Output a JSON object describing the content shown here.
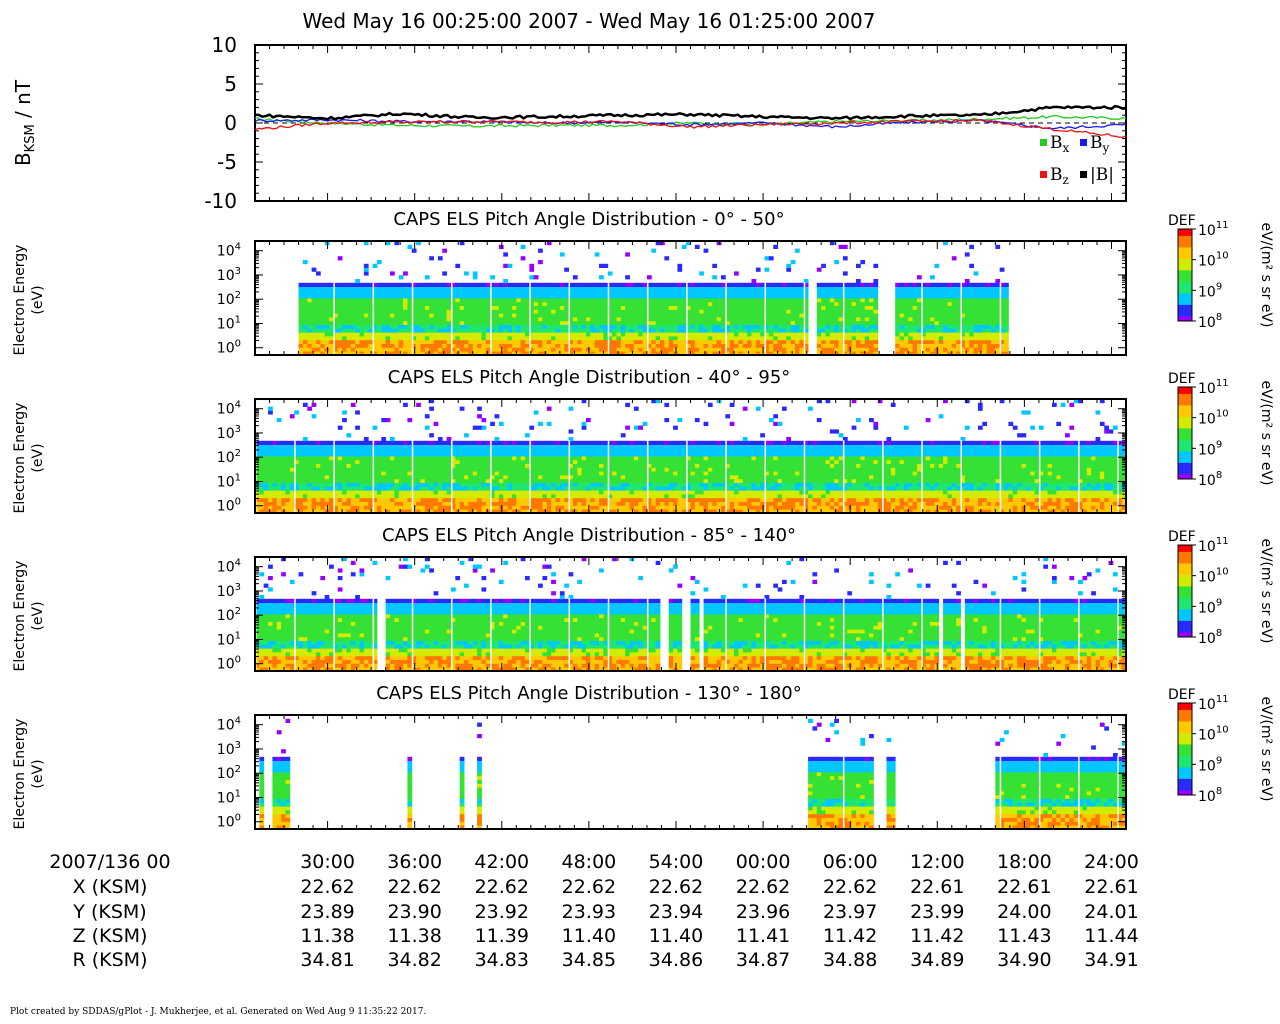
{
  "title": "Wed May 16 00:25:00 2007 - Wed May 16 01:25:00 2007",
  "footer": "Plot created by SDDAS/gPlot - J. Mukherjee, et al.  Generated on Wed Aug 9 11:35:22 2017.",
  "colors": {
    "bx": "#22cc22",
    "by": "#1a1aee",
    "bz": "#ee1111",
    "btot": "#000000",
    "colormap": [
      "#9900ff",
      "#2a2aff",
      "#00c8ff",
      "#1ee66e",
      "#34e134",
      "#d2eb00",
      "#ffc800",
      "#ff7800",
      "#ff0000"
    ]
  },
  "chart_data": [
    {
      "type": "line",
      "ylabel": "B",
      "ylabel_sub": "KSM",
      "ylabel_unit": " / nT",
      "ylim": [
        -10,
        10
      ],
      "yticks": [
        "10",
        "5",
        "0",
        "-5",
        "-10"
      ],
      "yticks_values": [
        10,
        5,
        0,
        -5,
        -10
      ],
      "x_unit": "minutes after 00:25",
      "xlim": [
        0,
        60
      ],
      "x": [
        0,
        5,
        10,
        15,
        20,
        25,
        30,
        35,
        40,
        45,
        50,
        55,
        60
      ],
      "series": [
        {
          "name": "B",
          "sub": "x",
          "color_key": "bx",
          "values": [
            0.5,
            0.0,
            -0.3,
            -0.4,
            -0.3,
            -0.3,
            0.0,
            -0.2,
            0.2,
            0.3,
            0.5,
            0.8,
            0.6
          ]
        },
        {
          "name": "B",
          "sub": "y",
          "color_key": "by",
          "values": [
            0.3,
            0.4,
            0.2,
            0.2,
            0.0,
            0.1,
            -0.2,
            0.0,
            -0.5,
            0.1,
            0.3,
            -0.7,
            -0.2
          ]
        },
        {
          "name": "B",
          "sub": "z",
          "color_key": "bz",
          "values": [
            -0.8,
            0.0,
            0.1,
            0.2,
            0.1,
            0.2,
            -0.5,
            -0.2,
            0.0,
            0.2,
            0.3,
            -0.8,
            -1.8
          ]
        },
        {
          "name": "|B|",
          "sub": "",
          "color_key": "btot",
          "values": [
            1.0,
            0.6,
            1.2,
            0.7,
            0.8,
            1.0,
            1.1,
            0.8,
            0.6,
            0.9,
            1.0,
            2.0,
            2.0
          ]
        }
      ]
    },
    {
      "type": "heatmap",
      "title": "CAPS ELS Pitch Angle Distribution - 0° - 50°",
      "ylabel": "Electron Energy",
      "ylabel_unit": "(eV)",
      "yticks": [
        "10",
        "10",
        "10",
        "10",
        "10"
      ],
      "yticks_exp": [
        "0",
        "1",
        "2",
        "3",
        "4"
      ],
      "colorbar": {
        "label": "DEF",
        "unit": "eV/(m² s sr eV)",
        "range_log10": [
          8,
          11
        ]
      },
      "data_minutes": [
        [
          3,
          52
        ]
      ],
      "gaps_minutes": [
        [
          38,
          38.6
        ],
        [
          43,
          44
        ],
        [
          53.5,
          54
        ],
        [
          55.5,
          56
        ]
      ],
      "profile": "typical"
    },
    {
      "type": "heatmap",
      "title": "CAPS ELS Pitch Angle Distribution - 40° - 95°",
      "ylabel": "Electron Energy",
      "ylabel_unit": "(eV)",
      "yticks": [
        "10",
        "10",
        "10",
        "10",
        "10"
      ],
      "yticks_exp": [
        "0",
        "1",
        "2",
        "3",
        "4"
      ],
      "colorbar": {
        "label": "DEF",
        "unit": "eV/(m² s sr eV)",
        "range_log10": [
          8,
          11
        ]
      },
      "data_minutes": [
        [
          0,
          60
        ]
      ],
      "gaps_minutes": [],
      "profile": "typical"
    },
    {
      "type": "heatmap",
      "title": "CAPS ELS Pitch Angle Distribution - 85° - 140°",
      "ylabel": "Electron Energy",
      "ylabel_unit": "(eV)",
      "yticks": [
        "10",
        "10",
        "10",
        "10",
        "10"
      ],
      "yticks_exp": [
        "0",
        "1",
        "2",
        "3",
        "4"
      ],
      "colorbar": {
        "label": "DEF",
        "unit": "eV/(m² s sr eV)",
        "range_log10": [
          8,
          11
        ]
      },
      "data_minutes": [
        [
          0,
          60
        ]
      ],
      "gaps_minutes": [
        [
          8.5,
          9
        ],
        [
          28,
          28.5
        ],
        [
          29.5,
          30
        ],
        [
          30.5,
          31
        ],
        [
          47,
          47.5
        ],
        [
          48.5,
          49
        ]
      ],
      "profile": "typical"
    },
    {
      "type": "heatmap",
      "title": "CAPS ELS Pitch Angle Distribution - 130° - 180°",
      "ylabel": "Electron Energy",
      "ylabel_unit": "(eV)",
      "yticks": [
        "10",
        "10",
        "10",
        "10",
        "10"
      ],
      "yticks_exp": [
        "0",
        "1",
        "2",
        "3",
        "4"
      ],
      "colorbar": {
        "label": "DEF",
        "unit": "eV/(m² s sr eV)",
        "range_log10": [
          8,
          11
        ]
      },
      "data_minutes": [
        [
          0.3,
          0.6
        ],
        [
          1.3,
          2.5
        ],
        [
          10.5,
          10.7
        ],
        [
          14.2,
          14.4
        ],
        [
          15.4,
          15.6
        ],
        [
          38,
          42.5
        ],
        [
          43.5,
          44
        ],
        [
          51,
          60
        ]
      ],
      "gaps_minutes": [],
      "profile": "sparse"
    }
  ],
  "ephemeris": {
    "row_labels": [
      "2007/136 00",
      "X (KSM)",
      "Y (KSM)",
      "Z (KSM)",
      "R (KSM)"
    ],
    "time_ticks": [
      "30:00",
      "36:00",
      "42:00",
      "48:00",
      "54:00",
      "00:00",
      "06:00",
      "12:00",
      "18:00",
      "24:00"
    ],
    "tick_minutes": [
      5,
      11,
      17,
      23,
      29,
      35,
      41,
      47,
      53,
      59
    ],
    "x": [
      "22.62",
      "22.62",
      "22.62",
      "22.62",
      "22.62",
      "22.62",
      "22.62",
      "22.61",
      "22.61",
      "22.61"
    ],
    "y": [
      "23.89",
      "23.90",
      "23.92",
      "23.93",
      "23.94",
      "23.96",
      "23.97",
      "23.99",
      "24.00",
      "24.01"
    ],
    "z": [
      "11.38",
      "11.38",
      "11.39",
      "11.40",
      "11.40",
      "11.41",
      "11.42",
      "11.42",
      "11.43",
      "11.44"
    ],
    "r": [
      "34.81",
      "34.82",
      "34.83",
      "34.85",
      "34.86",
      "34.87",
      "34.88",
      "34.89",
      "34.90",
      "34.91"
    ]
  }
}
